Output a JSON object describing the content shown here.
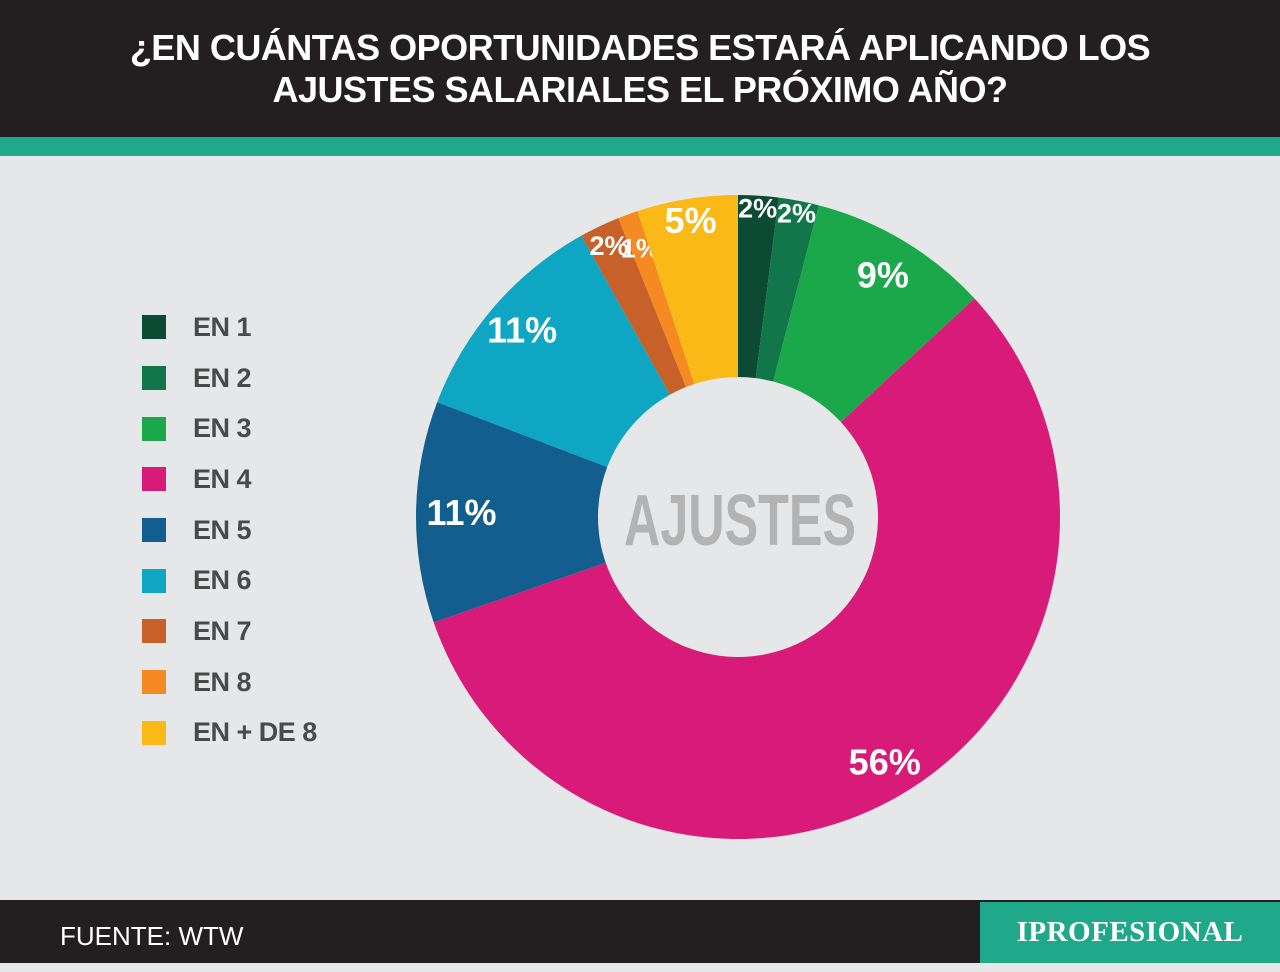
{
  "header": {
    "title_line1": "¿EN CUÁNTAS OPORTUNIDADES ESTARÁ APLICANDO LOS",
    "title_line2": "AJUSTES SALARIALES EL PRÓXIMO AÑO?"
  },
  "colors": {
    "header_bg": "#231f20",
    "accent": "#1fa98a",
    "background": "#e6e7e8"
  },
  "chart_data": {
    "type": "pie",
    "center_label": "AJUSTES",
    "categories": [
      "EN 1",
      "EN 2",
      "EN 3",
      "EN 4",
      "EN 5",
      "EN 6",
      "EN 7",
      "EN 8",
      "EN + DE 8"
    ],
    "values": [
      2,
      2,
      9,
      56,
      11,
      11,
      2,
      1,
      5
    ],
    "value_labels": [
      "2%",
      "2%",
      "9%",
      "56%",
      "11%",
      "11%",
      "2%",
      "1%",
      "5%"
    ],
    "colors": [
      "#0d4a33",
      "#11764a",
      "#1aa84b",
      "#d81b78",
      "#125e8e",
      "#0ea6c2",
      "#c8602a",
      "#f58a22",
      "#fbb917"
    ],
    "legend_position": "left"
  },
  "footer": {
    "source": "FUENTE: WTW",
    "brand": "IPROFESIONAL"
  }
}
